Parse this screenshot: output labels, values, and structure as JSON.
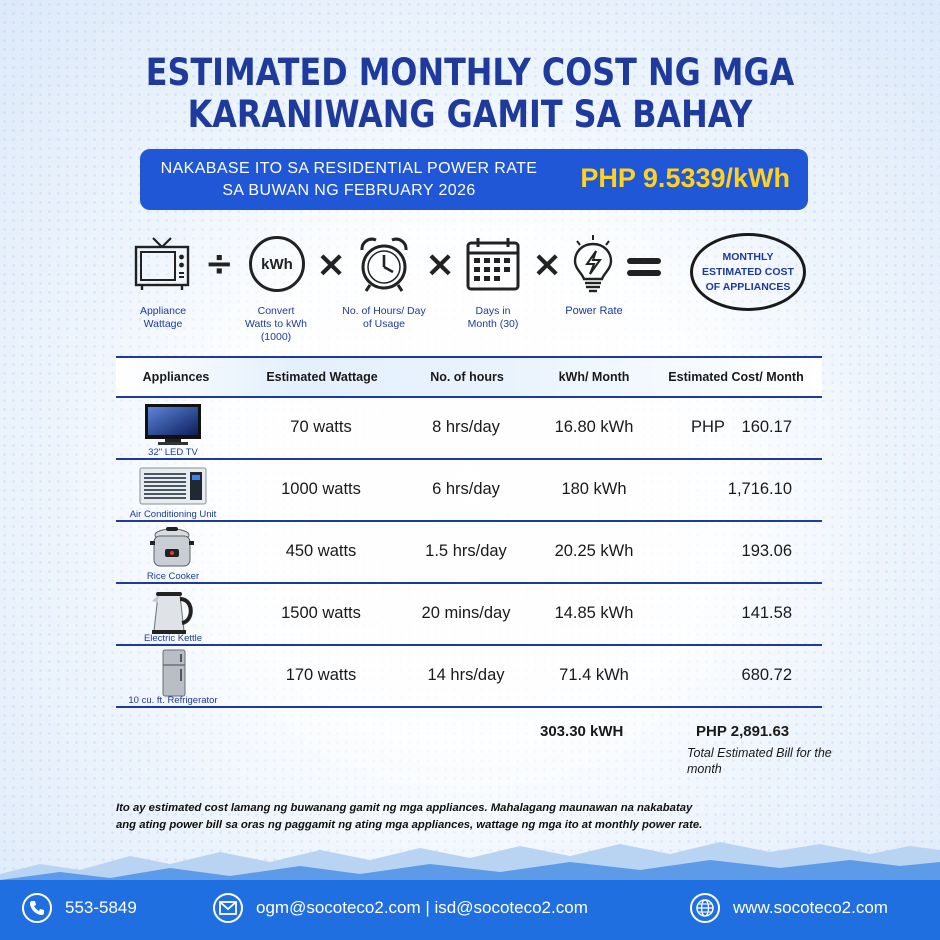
{
  "title": {
    "line1": "ESTIMATED MONTHLY COST NG MGA",
    "line2": "KARANIWANG GAMIT SA BAHAY"
  },
  "rate_banner": {
    "line1": "NAKABASE ITO SA RESIDENTIAL POWER RATE",
    "line2": "SA BUWAN NG FEBRUARY 2026",
    "rate": "PHP 9.5339/kWh"
  },
  "formula": {
    "appliance_caption": "Appliance Wattage",
    "convert_caption_1": "Convert",
    "convert_caption_2": "Watts to  kWh",
    "convert_caption_3": "(1000)",
    "kwh_label": "kWh",
    "hours_caption_1": "No. of Hours/ Day",
    "hours_caption_2": "of Usage",
    "days_caption_1": "Days in",
    "days_caption_2": "Month (30)",
    "rate_caption": "Power Rate",
    "op_divide": "÷",
    "op_times": "×",
    "result_1": "MONTHLY",
    "result_2": "ESTIMATED COST",
    "result_3": "OF APPLIANCES"
  },
  "table": {
    "headers": {
      "appliances": "Appliances",
      "wattage": "Estimated Wattage",
      "hours": "No. of hours",
      "kwh": "kWh/ Month",
      "cost": "Estimated Cost/ Month"
    },
    "currency": "PHP",
    "rows": [
      {
        "label": "32\" LED TV",
        "wattage": "70 watts",
        "hours": "8 hrs/day",
        "kwh": "16.80 kWh",
        "cost": "160.17",
        "icon": "tv-image"
      },
      {
        "label": "Air Conditioning Unit",
        "wattage": "1000 watts",
        "hours": "6 hrs/day",
        "kwh": "180 kWh",
        "cost": "1,716.10",
        "icon": "aircon-image"
      },
      {
        "label": "Rice Cooker",
        "wattage": "450 watts",
        "hours": "1.5 hrs/day",
        "kwh": "20.25 kWh",
        "cost": "193.06",
        "icon": "rice-cooker-image"
      },
      {
        "label": "Electric Kettle",
        "wattage": "1500 watts",
        "hours": "20 mins/day",
        "kwh": "14.85 kWh",
        "cost": "141.58",
        "icon": "kettle-image"
      },
      {
        "label": "10 cu. ft. Refrigerator",
        "wattage": "170 watts",
        "hours": "14 hrs/day",
        "kwh": "71.4 kWh",
        "cost": "680.72",
        "icon": "refrigerator-image"
      }
    ]
  },
  "totals": {
    "kwh": "303.30 kWH",
    "bill": "PHP 2,891.63",
    "note": "Total Estimated Bill for the month"
  },
  "disclaimer": {
    "line1": "Ito ay estimated cost lamang ng buwanang gamit ng mga appliances. Mahalagang maunawan na nakabatay",
    "line2": "ang ating power bill sa oras ng paggamit ng ating mga appliances, wattage ng mga ito at monthly power rate."
  },
  "footer": {
    "phone": "553-5849",
    "email": "ogm@socoteco2.com | isd@socoteco2.com",
    "website": "www.socoteco2.com"
  },
  "colors": {
    "navy": "#1e3a9c",
    "banner_blue": "#1f57d6",
    "rate_yellow": "#ffd21e",
    "footer_blue": "#1f6fe0"
  }
}
